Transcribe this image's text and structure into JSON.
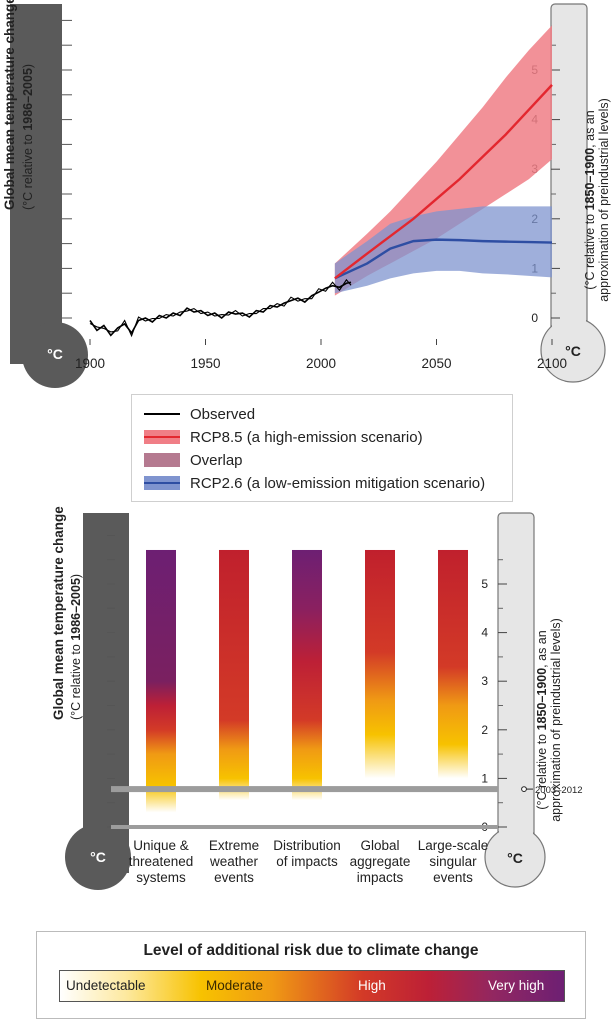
{
  "chart_data": [
    {
      "type": "line",
      "left_axis_label": "Global mean temperature change",
      "left_axis_sublabel_prefix": "(°C relative to ",
      "left_axis_sublabel_bold": "1986–2005",
      "left_axis_sublabel_suffix": ")",
      "right_axis_label_line1_prefix": "(°C relative to ",
      "right_axis_label_line1_bold": "1850–1900",
      "right_axis_label_line1_suffix": ", as an",
      "right_axis_label_line2": "approximation of preindustrial levels)",
      "unit_symbol": "°C",
      "x_ticks": [
        1900,
        1950,
        2000,
        2050,
        2100
      ],
      "right_ticks": [
        0,
        1,
        2,
        3,
        4,
        5
      ],
      "ylim": [
        -0.6,
        5.6
      ],
      "xlim": [
        1900,
        2100
      ],
      "series": [
        {
          "name": "Observed",
          "color": "#000000",
          "x": [
            1900,
            1903,
            1906,
            1909,
            1912,
            1915,
            1918,
            1921,
            1924,
            1927,
            1930,
            1933,
            1936,
            1939,
            1942,
            1945,
            1948,
            1951,
            1954,
            1957,
            1960,
            1963,
            1966,
            1969,
            1972,
            1975,
            1978,
            1981,
            1984,
            1987,
            1990,
            1993,
            1996,
            1999,
            2002,
            2005,
            2008,
            2011,
            2013
          ],
          "y": [
            -0.05,
            -0.25,
            -0.15,
            -0.35,
            -0.2,
            -0.12,
            -0.3,
            -0.05,
            0.0,
            -0.08,
            0.05,
            0.0,
            0.1,
            0.05,
            0.2,
            0.12,
            0.15,
            0.05,
            0.1,
            0.0,
            0.12,
            0.08,
            0.1,
            0.02,
            0.15,
            0.12,
            0.25,
            0.22,
            0.3,
            0.35,
            0.4,
            0.32,
            0.45,
            0.52,
            0.6,
            0.65,
            0.62,
            0.7,
            0.72
          ]
        },
        {
          "name": "RCP8.5 (a high-emission scenario)",
          "color": "#e3272f",
          "band_color": "#f07e86",
          "x": [
            2006,
            2020,
            2030,
            2040,
            2050,
            2060,
            2070,
            2080,
            2090,
            2100
          ],
          "y": [
            0.8,
            1.3,
            1.65,
            2.0,
            2.4,
            2.8,
            3.25,
            3.7,
            4.2,
            4.7
          ],
          "low": [
            0.45,
            0.85,
            1.1,
            1.35,
            1.6,
            1.9,
            2.2,
            2.5,
            2.8,
            3.2
          ],
          "high": [
            1.1,
            1.7,
            2.15,
            2.65,
            3.15,
            3.7,
            4.25,
            4.85,
            5.4,
            5.9
          ]
        },
        {
          "name": "RCP2.6 (a low-emission mitigation scenario)",
          "color": "#2e4ea3",
          "band_color": "#7f94cf",
          "x": [
            2006,
            2020,
            2030,
            2040,
            2050,
            2060,
            2070,
            2080,
            2090,
            2100
          ],
          "y": [
            0.8,
            1.1,
            1.4,
            1.55,
            1.58,
            1.57,
            1.55,
            1.54,
            1.53,
            1.52
          ],
          "low": [
            0.5,
            0.65,
            0.8,
            0.9,
            0.95,
            0.95,
            0.9,
            0.88,
            0.85,
            0.82
          ],
          "high": [
            1.1,
            1.55,
            1.9,
            2.05,
            2.15,
            2.2,
            2.25,
            2.25,
            2.25,
            2.25
          ]
        }
      ]
    },
    {
      "type": "heatmap",
      "left_axis_label": "Global mean temperature change",
      "left_axis_sublabel_prefix": "(°C relative to ",
      "left_axis_sublabel_bold": "1986–2005",
      "left_axis_sublabel_suffix": ")",
      "right_axis_label_line1_prefix": "(°C relative to ",
      "right_axis_label_line1_bold": "1850–1900",
      "right_axis_label_line1_suffix": ", as an",
      "right_axis_label_line2": "approximation of preindustrial levels)",
      "unit_symbol": "°C",
      "right_ticks": [
        0,
        1,
        2,
        3,
        4,
        5
      ],
      "ylim": [
        0,
        5.7
      ],
      "reference_marker": {
        "label": "2003–2012",
        "value": 0.78
      },
      "categories": [
        {
          "label": [
            "Unique &",
            "threatened",
            "systems"
          ],
          "stops": [
            [
              0.3,
              "#ffffff"
            ],
            [
              0.85,
              "#f7c200"
            ],
            [
              1.5,
              "#f09a14"
            ],
            [
              2.0,
              "#d33a27"
            ],
            [
              2.5,
              "#bd2036"
            ],
            [
              3.0,
              "#7a2060"
            ],
            [
              5.7,
              "#6d1f73"
            ]
          ]
        },
        {
          "label": [
            "Extreme",
            "weather",
            "events"
          ],
          "stops": [
            [
              0.55,
              "#ffffff"
            ],
            [
              1.0,
              "#f7c200"
            ],
            [
              1.6,
              "#f09a14"
            ],
            [
              2.2,
              "#d33a27"
            ],
            [
              5.7,
              "#c0202d"
            ]
          ]
        },
        {
          "label": [
            "Distribution",
            "of impacts"
          ],
          "stops": [
            [
              0.55,
              "#ffffff"
            ],
            [
              1.0,
              "#f7c200"
            ],
            [
              1.6,
              "#f09a14"
            ],
            [
              2.2,
              "#d33a27"
            ],
            [
              3.4,
              "#bd2036"
            ],
            [
              4.5,
              "#8a2060"
            ],
            [
              5.7,
              "#6d1f73"
            ]
          ]
        },
        {
          "label": [
            "Global",
            "aggregate",
            "impacts"
          ],
          "stops": [
            [
              1.0,
              "#ffffff"
            ],
            [
              1.9,
              "#f7c200"
            ],
            [
              2.6,
              "#f09a14"
            ],
            [
              3.6,
              "#d33a27"
            ],
            [
              5.7,
              "#c0202d"
            ]
          ]
        },
        {
          "label": [
            "Large-scale",
            "singular",
            "events"
          ],
          "stops": [
            [
              1.0,
              "#ffffff"
            ],
            [
              1.7,
              "#f7c200"
            ],
            [
              2.5,
              "#f09a14"
            ],
            [
              3.3,
              "#d33a27"
            ],
            [
              5.7,
              "#c0202d"
            ]
          ]
        }
      ]
    }
  ],
  "legend": {
    "items": [
      {
        "label": "Observed",
        "kind": "line",
        "color": "#000000"
      },
      {
        "label": "RCP8.5 (a high-emission scenario)",
        "kind": "band",
        "color": "#f07e86",
        "line": "#e3272f"
      },
      {
        "label": "Overlap",
        "kind": "band",
        "color": "#b57a90",
        "line": ""
      },
      {
        "label": "RCP2.6 (a low-emission mitigation scenario)",
        "kind": "band",
        "color": "#7f94cf",
        "line": "#2e4ea3"
      }
    ]
  },
  "risk_scale": {
    "title": "Level of additional risk due to climate change",
    "labels": [
      "Undetectable",
      "Moderate",
      "High",
      "Very high"
    ]
  }
}
